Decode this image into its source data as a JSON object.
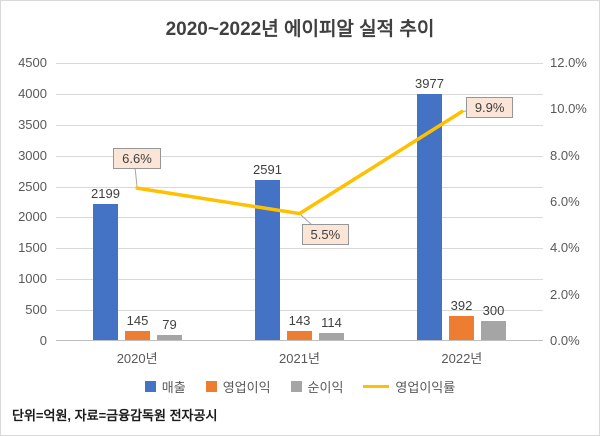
{
  "footer": "단위=억원, 자료=금융감독원 전자공시",
  "colors": {
    "revenue": "#4472c4",
    "op_profit": "#ed7d31",
    "net_profit": "#a5a5a5",
    "op_margin": "#ffc000",
    "annotation_bg": "#fbe5d6",
    "grid": "#d9d9d9",
    "axis_text": "#595959",
    "title_text": "#404040"
  },
  "chart_data": {
    "type": "bar+line",
    "title": "2020~2022년 에이피알 실적 추이",
    "categories": [
      "2020년",
      "2021년",
      "2022년"
    ],
    "series": [
      {
        "name": "매출",
        "type": "bar",
        "axis": "left",
        "color_key": "revenue",
        "values": [
          2199,
          2591,
          3977
        ]
      },
      {
        "name": "영업이익",
        "type": "bar",
        "axis": "left",
        "color_key": "op_profit",
        "values": [
          145,
          143,
          392
        ]
      },
      {
        "name": "순이익",
        "type": "bar",
        "axis": "left",
        "color_key": "net_profit",
        "values": [
          79,
          114,
          300
        ]
      },
      {
        "name": "영업이익률",
        "type": "line",
        "axis": "right",
        "color_key": "op_margin",
        "values": [
          6.6,
          5.5,
          9.9
        ],
        "labels": [
          "6.6%",
          "5.5%",
          "9.9%"
        ]
      }
    ],
    "left_axis": {
      "min": 0,
      "max": 4500,
      "step": 500,
      "ticks": [
        "0",
        "500",
        "1000",
        "1500",
        "2000",
        "2500",
        "3000",
        "3500",
        "4000",
        "4500"
      ]
    },
    "right_axis": {
      "min": 0,
      "max": 12,
      "step": 2,
      "ticks": [
        "0.0%",
        "2.0%",
        "4.0%",
        "6.0%",
        "8.0%",
        "10.0%",
        "12.0%"
      ]
    },
    "grid": true,
    "legend_position": "bottom"
  }
}
